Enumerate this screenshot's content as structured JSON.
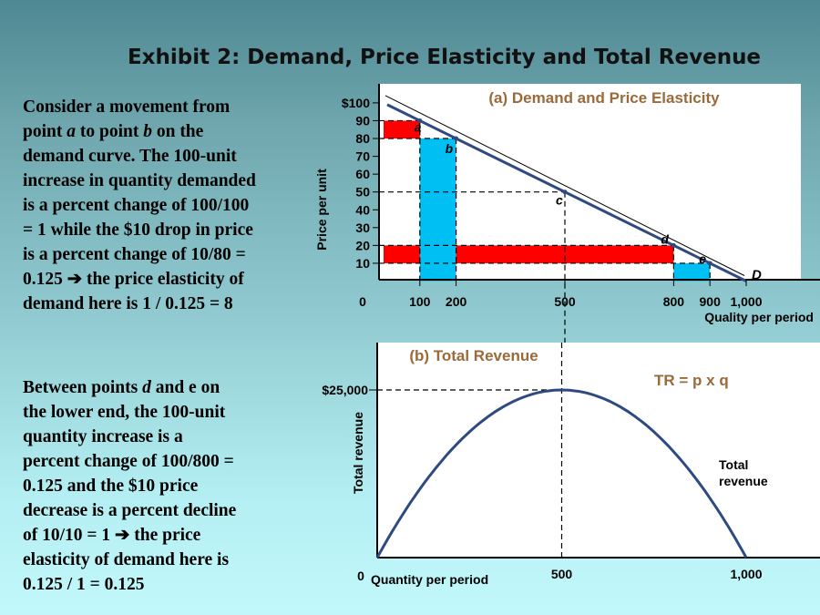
{
  "title": "Exhibit 2: Demand, Price Elasticity and Total Revenue",
  "paragraph1": [
    [
      {
        "t": "Consider a movement from"
      }
    ],
    [
      {
        "t": "point "
      },
      {
        "t": "a",
        "i": true
      },
      {
        "t": " to point "
      },
      {
        "t": "b",
        "i": true
      },
      {
        "t": " on the"
      }
    ],
    [
      {
        "t": "demand curve.  The 100-unit"
      }
    ],
    [
      {
        "t": "increase in quantity demanded"
      }
    ],
    [
      {
        "t": "is a percent change of 100/100"
      }
    ],
    [
      {
        "t": "= 1 while the $10 drop in price"
      }
    ],
    [
      {
        "t": "is a percent change of 10/80 ="
      }
    ],
    [
      {
        "t": "0.125 ➔ the price elasticity of"
      }
    ],
    [
      {
        "t": "demand here is 1 / 0.125 = 8"
      }
    ]
  ],
  "paragraph2": [
    [
      {
        "t": "Between points "
      },
      {
        "t": "d",
        "i": true
      },
      {
        "t": " and e on"
      }
    ],
    [
      {
        "t": "the lower end, the 100-unit"
      }
    ],
    [
      {
        "t": "quantity increase is a"
      }
    ],
    [
      {
        "t": "percent change of 100/800 ="
      }
    ],
    [
      {
        "t": "0.125 and the $10 price"
      }
    ],
    [
      {
        "t": "decrease is a percent decline"
      }
    ],
    [
      {
        "t": "of 10/10 = 1 ➔ the price"
      }
    ],
    [
      {
        "t": "elasticity of demand here is"
      }
    ],
    [
      {
        "t": "0.125 / 1 = 0.125"
      }
    ]
  ],
  "chart_data": [
    {
      "type": "line",
      "title": "(a) Demand and Price Elasticity",
      "xlabel": "Quality per period",
      "ylabel": "Price per unit",
      "xlim": [
        0,
        1000
      ],
      "ylim": [
        0,
        100
      ],
      "x_ticks": [
        "0",
        "100",
        "200",
        "500",
        "800",
        "900",
        "1,000"
      ],
      "x_tick_values": [
        0,
        100,
        200,
        500,
        800,
        900,
        1000
      ],
      "y_ticks": [
        "$100",
        "90",
        "80",
        "70",
        "60",
        "50",
        "40",
        "30",
        "20",
        "10"
      ],
      "y_tick_values": [
        100,
        90,
        80,
        70,
        60,
        50,
        40,
        30,
        20,
        10
      ],
      "series": [
        {
          "name": "D",
          "x": [
            0,
            1000
          ],
          "y": [
            100,
            0
          ]
        }
      ],
      "points": [
        {
          "label": "a",
          "x": 100,
          "y": 90
        },
        {
          "label": "b",
          "x": 200,
          "y": 80
        },
        {
          "label": "c",
          "x": 500,
          "y": 50
        },
        {
          "label": "d",
          "x": 800,
          "y": 20
        },
        {
          "label": "e",
          "x": 900,
          "y": 10
        }
      ],
      "shaded": [
        {
          "color": "#ff0000",
          "x": [
            0,
            100
          ],
          "y": [
            80,
            90
          ]
        },
        {
          "color": "#ff0000",
          "x": [
            0,
            800
          ],
          "y": [
            10,
            20
          ]
        },
        {
          "color": "#00bff3",
          "x": [
            100,
            200
          ],
          "y": [
            0,
            80
          ]
        },
        {
          "color": "#00bff3",
          "x": [
            800,
            900
          ],
          "y": [
            0,
            10
          ]
        }
      ],
      "colors": {
        "curve": "#2e4a80",
        "title": "#9a6a3a"
      }
    },
    {
      "type": "line",
      "title": "(b) Total Revenue",
      "annotation": "TR = p x q",
      "curve_label": [
        "Total",
        "revenue"
      ],
      "xlabel": "Quantity per period",
      "ylabel": "Total revenue",
      "xlim": [
        0,
        1000
      ],
      "ylim": [
        0,
        25000
      ],
      "x_ticks": [
        "0",
        "500",
        "1,000"
      ],
      "x_tick_values": [
        0,
        500,
        1000
      ],
      "y_ticks": [
        "$25,000"
      ],
      "y_tick_values": [
        25000
      ],
      "series": [
        {
          "name": "Total revenue",
          "x": [
            0,
            100,
            200,
            300,
            400,
            500,
            600,
            700,
            800,
            900,
            1000
          ],
          "y": [
            0,
            9000,
            16000,
            21000,
            24000,
            25000,
            24000,
            21000,
            16000,
            9000,
            0
          ]
        }
      ],
      "colors": {
        "curve": "#2e4a80",
        "title": "#9a6a3a"
      }
    }
  ]
}
